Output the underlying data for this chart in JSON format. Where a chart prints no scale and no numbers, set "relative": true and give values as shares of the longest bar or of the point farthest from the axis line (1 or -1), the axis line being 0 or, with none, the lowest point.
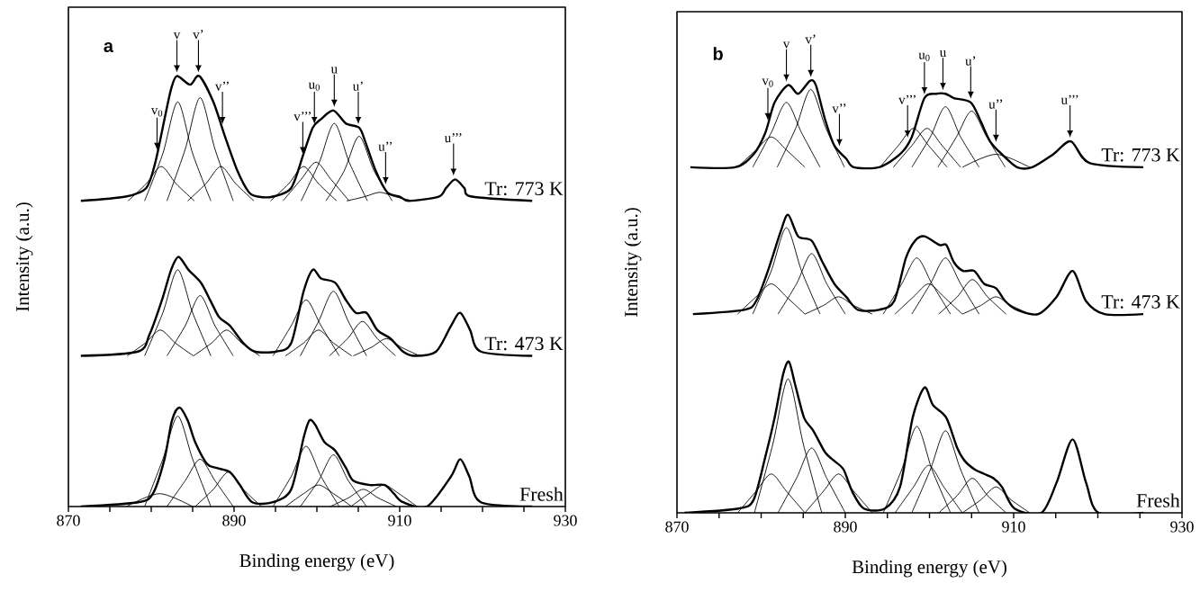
{
  "chart_data": [
    {
      "type": "line",
      "title": "a",
      "xlabel": "Binding energy (eV)",
      "ylabel": "Intensity (a.u.)",
      "relative": true,
      "xlim": [
        870,
        930
      ],
      "xticks": [
        870,
        {
          "value": 875,
          "label": null
        },
        {
          "value": 880,
          "label": null
        },
        {
          "value": 885,
          "label": null
        },
        890,
        {
          "value": 895,
          "label": null
        },
        {
          "value": 900,
          "label": null
        },
        {
          "value": 905,
          "label": null
        },
        910,
        {
          "value": 915,
          "label": null
        },
        {
          "value": 920,
          "label": null
        },
        {
          "value": 925,
          "label": null
        },
        930
      ],
      "annotations": [
        {
          "text": "v$_{0}$",
          "x": 880.7,
          "y": 0.82
        },
        {
          "text": "v",
          "x": 883.1,
          "y": 1.0
        },
        {
          "text": "v’",
          "x": 885.7,
          "y": 1.0
        },
        {
          "text": "v’’",
          "x": 888.6,
          "y": 0.88
        },
        {
          "text": "v’’’",
          "x": 898.3,
          "y": 0.81
        },
        {
          "text": "u$_{0}$",
          "x": 899.7,
          "y": 0.88
        },
        {
          "text": "u",
          "x": 902.1,
          "y": 0.92
        },
        {
          "text": "u’",
          "x": 905.0,
          "y": 0.88
        },
        {
          "text": "u’’",
          "x": 908.3,
          "y": 0.74
        },
        {
          "text": "u’’’",
          "x": 916.5,
          "y": 0.76
        }
      ],
      "series": [
        {
          "color": "#000000",
          "x": [
            877.2,
            879.4,
            881.2,
            883.0,
            885.2
          ],
          "values": [
            0.71,
            0.75,
            0.79,
            0.75,
            0.71
          ]
        },
        {
          "color": "#000000",
          "x": [
            879.2,
            881.4,
            883.2,
            885.0,
            887.2
          ],
          "values": [
            0.71,
            0.82,
            0.94,
            0.82,
            0.71
          ]
        },
        {
          "color": "#000000",
          "x": [
            881.9,
            884.1,
            885.9,
            887.7,
            889.9
          ],
          "values": [
            0.71,
            0.83,
            0.95,
            0.83,
            0.71
          ]
        },
        {
          "color": "#000000",
          "x": [
            884.4,
            886.6,
            888.4,
            890.2,
            892.4
          ],
          "values": [
            0.71,
            0.75,
            0.79,
            0.75,
            0.71
          ]
        },
        {
          "color": "#000000",
          "x": [
            894.4,
            896.6,
            898.4,
            900.2,
            902.4
          ],
          "values": [
            0.71,
            0.75,
            0.79,
            0.75,
            0.71
          ]
        },
        {
          "color": "#000000",
          "x": [
            895.9,
            898.1,
            899.9,
            901.7,
            903.9
          ],
          "values": [
            0.71,
            0.76,
            0.8,
            0.76,
            0.71
          ]
        },
        {
          "color": "#000000",
          "x": [
            898.1,
            900.3,
            902.1,
            903.9,
            906.1
          ],
          "values": [
            0.71,
            0.8,
            0.89,
            0.8,
            0.71
          ]
        },
        {
          "color": "#000000",
          "x": [
            901.1,
            903.3,
            905.1,
            906.9,
            909.1
          ],
          "values": [
            0.71,
            0.78,
            0.86,
            0.78,
            0.71
          ]
        },
        {
          "color": "#000000",
          "x": [
            903.6,
            905.8,
            907.6,
            909.4,
            911.6
          ],
          "values": [
            0.71,
            0.72,
            0.73,
            0.72,
            0.71
          ]
        },
        {
          "name": "Tr: 773 K",
          "color": "#000000",
          "x": [
            871.5,
            876.9,
            879.4,
            880.5,
            881.6,
            882.4,
            883.1,
            884.7,
            885.8,
            887.5,
            888.9,
            890.4,
            891.8,
            892.9,
            894.7,
            896.9,
            898.4,
            899.5,
            900.5,
            902.0,
            903.5,
            905.1,
            905.8,
            907.1,
            908.5,
            910.0,
            911.1,
            914.7,
            915.6,
            916.7,
            917.8,
            918.7,
            926.0
          ],
          "values": [
            0.71,
            0.72,
            0.74,
            0.8,
            0.9,
            0.97,
            1.0,
            0.98,
            1.0,
            0.94,
            0.86,
            0.78,
            0.73,
            0.72,
            0.72,
            0.74,
            0.82,
            0.88,
            0.9,
            0.92,
            0.89,
            0.88,
            0.85,
            0.78,
            0.73,
            0.72,
            0.71,
            0.72,
            0.74,
            0.76,
            0.74,
            0.72,
            0.71
          ]
        },
        {
          "color": "#000000",
          "x": [
            877.1,
            879.3,
            881.1,
            882.9,
            885.1
          ],
          "values": [
            0.35,
            0.38,
            0.41,
            0.38,
            0.35
          ]
        },
        {
          "color": "#000000",
          "x": [
            879.2,
            881.4,
            883.2,
            885.0,
            887.2
          ],
          "values": [
            0.35,
            0.45,
            0.55,
            0.45,
            0.35
          ]
        },
        {
          "color": "#000000",
          "x": [
            881.9,
            884.1,
            885.9,
            887.7,
            889.9
          ],
          "values": [
            0.35,
            0.42,
            0.49,
            0.42,
            0.35
          ]
        },
        {
          "color": "#000000",
          "x": [
            885.1,
            887.3,
            889.1,
            890.9,
            893.1
          ],
          "values": [
            0.35,
            0.38,
            0.41,
            0.38,
            0.35
          ]
        },
        {
          "color": "#000000",
          "x": [
            894.7,
            896.9,
            898.7,
            900.5,
            902.7
          ],
          "values": [
            0.35,
            0.42,
            0.48,
            0.42,
            0.35
          ]
        },
        {
          "color": "#000000",
          "x": [
            896.2,
            898.4,
            900.2,
            902.0,
            904.2
          ],
          "values": [
            0.35,
            0.38,
            0.41,
            0.38,
            0.35
          ]
        },
        {
          "color": "#000000",
          "x": [
            898.0,
            900.2,
            902.0,
            903.8,
            906.0
          ],
          "values": [
            0.35,
            0.43,
            0.5,
            0.43,
            0.35
          ]
        },
        {
          "color": "#000000",
          "x": [
            901.5,
            903.7,
            905.5,
            907.3,
            909.5
          ],
          "values": [
            0.35,
            0.39,
            0.43,
            0.39,
            0.35
          ]
        },
        {
          "color": "#000000",
          "x": [
            904.4,
            906.6,
            908.4,
            910.2,
            912.4
          ],
          "values": [
            0.35,
            0.37,
            0.39,
            0.37,
            0.35
          ]
        },
        {
          "name": "Tr: 473 K",
          "color": "#000000",
          "x": [
            871.5,
            878.4,
            879.8,
            881.3,
            882.4,
            883.3,
            884.5,
            886.0,
            887.1,
            888.2,
            889.5,
            891.1,
            892.5,
            895.1,
            896.9,
            898.4,
            899.5,
            900.5,
            902.2,
            903.5,
            904.7,
            906.0,
            907.3,
            908.9,
            910.4,
            911.8,
            914.4,
            916.2,
            917.3,
            918.5,
            919.8,
            926.0
          ],
          "values": [
            0.35,
            0.36,
            0.4,
            0.48,
            0.55,
            0.58,
            0.55,
            0.52,
            0.48,
            0.44,
            0.42,
            0.38,
            0.36,
            0.36,
            0.38,
            0.5,
            0.55,
            0.53,
            0.52,
            0.48,
            0.45,
            0.45,
            0.41,
            0.39,
            0.36,
            0.35,
            0.36,
            0.42,
            0.45,
            0.41,
            0.36,
            0.35
          ]
        },
        {
          "color": "#000000",
          "x": [
            877.0,
            879.2,
            881.0,
            882.8,
            885.0
          ],
          "values": [
            0,
            0.02,
            0.03,
            0.02,
            0
          ]
        },
        {
          "color": "#000000",
          "x": [
            879.2,
            881.4,
            883.2,
            885.0,
            887.2
          ],
          "values": [
            0,
            0.11,
            0.21,
            0.11,
            0
          ]
        },
        {
          "color": "#000000",
          "x": [
            881.9,
            884.1,
            885.9,
            887.7,
            889.9
          ],
          "values": [
            0,
            0.06,
            0.11,
            0.06,
            0
          ]
        },
        {
          "color": "#000000",
          "x": [
            885.3,
            887.5,
            889.3,
            891.1,
            893.3
          ],
          "values": [
            0,
            0.04,
            0.08,
            0.04,
            0
          ]
        },
        {
          "color": "#000000",
          "x": [
            894.7,
            896.9,
            898.7,
            900.5,
            902.7
          ],
          "values": [
            0,
            0.07,
            0.14,
            0.07,
            0
          ]
        },
        {
          "color": "#000000",
          "x": [
            896.2,
            898.4,
            900.2,
            902.0,
            904.2
          ],
          "values": [
            0,
            0.03,
            0.05,
            0.03,
            0
          ]
        },
        {
          "color": "#000000",
          "x": [
            898.0,
            900.2,
            902.0,
            903.8,
            906.0
          ],
          "values": [
            0,
            0.06,
            0.12,
            0.06,
            0
          ]
        },
        {
          "color": "#000000",
          "x": [
            901.6,
            903.8,
            905.6,
            907.4,
            909.6
          ],
          "values": [
            0,
            0.02,
            0.04,
            0.02,
            0
          ]
        },
        {
          "color": "#000000",
          "x": [
            904.1,
            906.3,
            908.1,
            909.9,
            912.1
          ],
          "values": [
            0,
            0.03,
            0.05,
            0.03,
            0
          ]
        },
        {
          "name": "Fresh",
          "color": "#000000",
          "x": [
            871.5,
            878.4,
            880.2,
            881.6,
            882.5,
            883.4,
            884.4,
            885.3,
            886.7,
            887.8,
            889.5,
            890.7,
            892.2,
            894.7,
            896.9,
            898.4,
            899.1,
            899.8,
            900.9,
            902.2,
            903.5,
            904.4,
            906.4,
            908.2,
            909.3,
            910.4,
            913.3,
            916.2,
            917.3,
            918.4,
            919.8,
            926.0
          ],
          "values": [
            0,
            0.01,
            0.03,
            0.11,
            0.2,
            0.23,
            0.2,
            0.15,
            0.1,
            0.09,
            0.08,
            0.05,
            0.01,
            0.01,
            0.04,
            0.16,
            0.2,
            0.19,
            0.15,
            0.13,
            0.09,
            0.06,
            0.05,
            0.05,
            0.03,
            0.01,
            0,
            0.07,
            0.11,
            0.07,
            0.01,
            0
          ]
        }
      ]
    },
    {
      "type": "line",
      "title": "b",
      "xlabel": "Binding energy (eV)",
      "ylabel": "Intensity (a.u.)",
      "relative": true,
      "xlim": [
        870,
        930
      ],
      "xticks": [
        870,
        {
          "value": 875,
          "label": null
        },
        {
          "value": 880,
          "label": null
        },
        {
          "value": 885,
          "label": null
        },
        890,
        {
          "value": 895,
          "label": null
        },
        {
          "value": 900,
          "label": null
        },
        {
          "value": 905,
          "label": null
        },
        910,
        {
          "value": 915,
          "label": null
        },
        {
          "value": 920,
          "label": null
        },
        {
          "value": 925,
          "label": null
        },
        930
      ],
      "annotations": [
        {
          "text": "v$_{0}$",
          "x": 880.8,
          "y": 0.9
        },
        {
          "text": "v",
          "x": 883.0,
          "y": 0.99
        },
        {
          "text": "v’",
          "x": 885.9,
          "y": 1.0
        },
        {
          "text": "v’’",
          "x": 889.3,
          "y": 0.84
        },
        {
          "text": "v’’’",
          "x": 897.4,
          "y": 0.86
        },
        {
          "text": "u$_{0}$",
          "x": 899.4,
          "y": 0.96
        },
        {
          "text": "u",
          "x": 901.6,
          "y": 0.97
        },
        {
          "text": "u’",
          "x": 904.9,
          "y": 0.95
        },
        {
          "text": "u’’",
          "x": 907.9,
          "y": 0.85
        },
        {
          "text": "u’’’",
          "x": 916.7,
          "y": 0.86
        }
      ],
      "series": [
        {
          "color": "#000000",
          "x": [
            877.2,
            879.4,
            881.2,
            883.0,
            885.2
          ],
          "values": [
            0.8,
            0.84,
            0.87,
            0.84,
            0.8
          ]
        },
        {
          "color": "#000000",
          "x": [
            879.0,
            881.2,
            883.0,
            884.8,
            887.0
          ],
          "values": [
            0.8,
            0.88,
            0.95,
            0.88,
            0.8
          ]
        },
        {
          "color": "#000000",
          "x": [
            881.9,
            884.1,
            885.9,
            887.7,
            889.9
          ],
          "values": [
            0.8,
            0.89,
            0.98,
            0.89,
            0.8
          ]
        },
        {
          "color": "#000000",
          "x": [
            894.1,
            896.3,
            898.1,
            899.9,
            902.1
          ],
          "values": [
            0.8,
            0.85,
            0.89,
            0.85,
            0.8
          ]
        },
        {
          "color": "#000000",
          "x": [
            895.7,
            897.9,
            899.7,
            901.5,
            903.7
          ],
          "values": [
            0.8,
            0.85,
            0.89,
            0.85,
            0.8
          ]
        },
        {
          "color": "#000000",
          "x": [
            897.9,
            900.1,
            901.9,
            903.7,
            905.9
          ],
          "values": [
            0.8,
            0.87,
            0.94,
            0.87,
            0.8
          ]
        },
        {
          "color": "#000000",
          "x": [
            901.0,
            903.2,
            905.0,
            906.8,
            909.0
          ],
          "values": [
            0.8,
            0.87,
            0.93,
            0.87,
            0.8
          ]
        },
        {
          "color": "#000000",
          "x": [
            903.9,
            906.1,
            907.9,
            909.7,
            911.9
          ],
          "values": [
            0.8,
            0.82,
            0.83,
            0.82,
            0.8
          ]
        },
        {
          "name": "Tr: 773 K",
          "color": "#000000",
          "x": [
            871.6,
            876.9,
            879.1,
            880.5,
            881.6,
            883.2,
            884.4,
            885.8,
            886.5,
            887.6,
            888.7,
            890.1,
            891.0,
            894.0,
            896.5,
            897.9,
            899.4,
            900.8,
            901.9,
            902.9,
            904.9,
            906.0,
            907.2,
            908.6,
            910.4,
            912.2,
            914.7,
            916.8,
            919.0,
            925.4
          ],
          "values": [
            0.8,
            0.8,
            0.83,
            0.88,
            0.95,
            0.99,
            0.97,
            1.0,
            0.99,
            0.91,
            0.85,
            0.82,
            0.8,
            0.8,
            0.83,
            0.87,
            0.96,
            0.97,
            0.97,
            0.96,
            0.95,
            0.91,
            0.86,
            0.83,
            0.8,
            0.8,
            0.83,
            0.86,
            0.81,
            0.8
          ]
        },
        {
          "color": "#000000",
          "x": [
            877.2,
            879.4,
            881.2,
            883.0,
            885.2
          ],
          "values": [
            0.46,
            0.5,
            0.53,
            0.5,
            0.46
          ]
        },
        {
          "color": "#000000",
          "x": [
            879.0,
            881.2,
            883.0,
            884.8,
            887.0
          ],
          "values": [
            0.46,
            0.56,
            0.66,
            0.56,
            0.46
          ]
        },
        {
          "color": "#000000",
          "x": [
            882.0,
            884.2,
            886.0,
            887.8,
            890.0
          ],
          "values": [
            0.46,
            0.53,
            0.6,
            0.53,
            0.46
          ]
        },
        {
          "color": "#000000",
          "x": [
            885.2,
            887.4,
            889.2,
            891.0,
            893.2
          ],
          "values": [
            0.46,
            0.48,
            0.5,
            0.48,
            0.46
          ]
        },
        {
          "color": "#000000",
          "x": [
            894.5,
            896.7,
            898.5,
            900.3,
            902.5
          ],
          "values": [
            0.46,
            0.53,
            0.59,
            0.53,
            0.46
          ]
        },
        {
          "color": "#000000",
          "x": [
            895.9,
            898.1,
            899.9,
            901.7,
            903.9
          ],
          "values": [
            0.46,
            0.5,
            0.53,
            0.5,
            0.46
          ]
        },
        {
          "color": "#000000",
          "x": [
            897.9,
            900.1,
            901.9,
            903.7,
            905.9
          ],
          "values": [
            0.46,
            0.53,
            0.59,
            0.53,
            0.46
          ]
        },
        {
          "color": "#000000",
          "x": [
            901.1,
            903.3,
            905.1,
            906.9,
            909.1
          ],
          "values": [
            0.46,
            0.5,
            0.54,
            0.5,
            0.46
          ]
        },
        {
          "color": "#000000",
          "x": [
            903.9,
            906.1,
            907.9,
            909.7,
            911.9
          ],
          "values": [
            0.46,
            0.48,
            0.5,
            0.48,
            0.46
          ]
        },
        {
          "name": "Tr: 473 K",
          "color": "#000000",
          "x": [
            871.9,
            878.0,
            879.4,
            880.8,
            882.3,
            883.2,
            884.4,
            886.0,
            887.3,
            888.7,
            890.1,
            891.5,
            894.0,
            895.8,
            897.2,
            898.3,
            899.4,
            901.2,
            902.0,
            902.9,
            904.0,
            905.3,
            906.5,
            907.9,
            909.0,
            910.4,
            912.9,
            915.1,
            917.0,
            918.6,
            920.8,
            925.4
          ],
          "values": [
            0.46,
            0.47,
            0.49,
            0.56,
            0.65,
            0.69,
            0.64,
            0.63,
            0.58,
            0.53,
            0.5,
            0.47,
            0.47,
            0.49,
            0.59,
            0.63,
            0.64,
            0.62,
            0.62,
            0.58,
            0.56,
            0.56,
            0.53,
            0.52,
            0.49,
            0.47,
            0.46,
            0.5,
            0.56,
            0.49,
            0.46,
            0.46
          ]
        },
        {
          "color": "#000000",
          "x": [
            877.2,
            879.4,
            881.2,
            883.0,
            885.2
          ],
          "values": [
            0,
            0.05,
            0.09,
            0.05,
            0
          ]
        },
        {
          "color": "#000000",
          "x": [
            879.2,
            881.4,
            883.2,
            885.0,
            887.2
          ],
          "values": [
            0,
            0.16,
            0.31,
            0.16,
            0
          ]
        },
        {
          "color": "#000000",
          "x": [
            882.0,
            884.2,
            886.0,
            887.8,
            890.0
          ],
          "values": [
            0,
            0.08,
            0.15,
            0.08,
            0
          ]
        },
        {
          "color": "#000000",
          "x": [
            885.2,
            887.4,
            889.2,
            891.0,
            893.2
          ],
          "values": [
            0,
            0.05,
            0.09,
            0.05,
            0
          ]
        },
        {
          "color": "#000000",
          "x": [
            894.5,
            896.7,
            898.5,
            900.3,
            902.5
          ],
          "values": [
            0,
            0.1,
            0.2,
            0.1,
            0
          ]
        },
        {
          "color": "#000000",
          "x": [
            895.9,
            898.1,
            899.9,
            901.7,
            903.9
          ],
          "values": [
            0,
            0.06,
            0.11,
            0.06,
            0
          ]
        },
        {
          "color": "#000000",
          "x": [
            897.9,
            900.1,
            901.9,
            903.7,
            905.9
          ],
          "values": [
            0,
            0.1,
            0.19,
            0.1,
            0
          ]
        },
        {
          "color": "#000000",
          "x": [
            901.1,
            903.3,
            905.1,
            906.9,
            909.1
          ],
          "values": [
            0,
            0.04,
            0.08,
            0.04,
            0
          ]
        },
        {
          "color": "#000000",
          "x": [
            903.9,
            906.1,
            907.9,
            909.7,
            911.9
          ],
          "values": [
            0,
            0.03,
            0.06,
            0.03,
            0
          ]
        },
        {
          "name": "Fresh",
          "color": "#000000",
          "x": [
            870.9,
            877.3,
            879.1,
            880.5,
            881.6,
            882.6,
            883.3,
            884.0,
            885.1,
            886.2,
            887.6,
            888.7,
            889.8,
            890.8,
            892.2,
            894.7,
            896.5,
            898.0,
            899.4,
            900.4,
            902.0,
            903.3,
            904.2,
            905.4,
            906.5,
            907.6,
            908.6,
            910.1,
            913.3,
            915.1,
            917.0,
            918.6,
            920.1,
            925.4
          ],
          "values": [
            0,
            0.01,
            0.03,
            0.13,
            0.22,
            0.32,
            0.35,
            0.3,
            0.22,
            0.19,
            0.14,
            0.12,
            0.1,
            0.05,
            0.01,
            0.01,
            0.06,
            0.22,
            0.29,
            0.25,
            0.22,
            0.15,
            0.12,
            0.1,
            0.09,
            0.08,
            0.06,
            0.01,
            0,
            0.07,
            0.17,
            0.07,
            0,
            0
          ]
        }
      ]
    }
  ]
}
